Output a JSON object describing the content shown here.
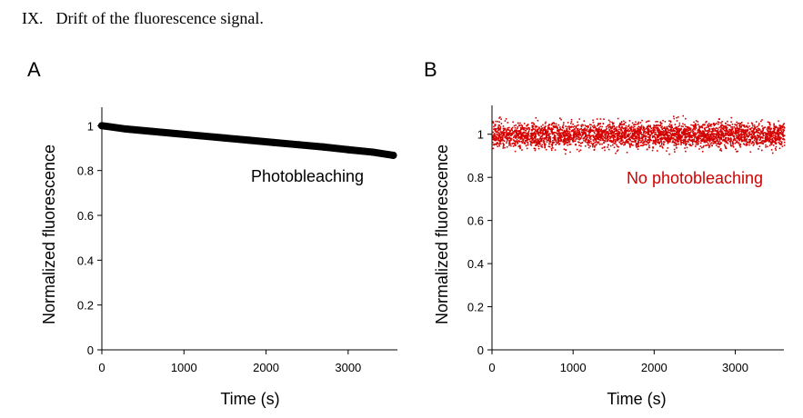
{
  "heading": {
    "number": "IX.",
    "title": "Drift of the fluorescence signal."
  },
  "chart_data": [
    {
      "type": "scatter",
      "panel_label": "A",
      "xlabel": "Time (s)",
      "ylabel": "Normalized fluorescence",
      "xlim": [
        0,
        3600
      ],
      "ylim": [
        0,
        1.05
      ],
      "xticks": [
        0,
        1000,
        2000,
        3000
      ],
      "yticks": [
        0,
        0.2,
        0.4,
        0.6,
        0.8,
        1
      ],
      "ytick_labels": [
        "0",
        "0.2",
        "0.4",
        "0.6",
        "0.8",
        "1"
      ],
      "grid": false,
      "annotation": "Photobleaching",
      "color": "#000000",
      "series": [
        {
          "x": [
            0,
            300,
            600,
            900,
            1200,
            1500,
            1800,
            2100,
            2400,
            2700,
            3000,
            3300,
            3550
          ],
          "y": [
            1.0,
            0.985,
            0.975,
            0.965,
            0.955,
            0.945,
            0.935,
            0.925,
            0.915,
            0.905,
            0.893,
            0.882,
            0.868
          ]
        }
      ]
    },
    {
      "type": "scatter",
      "panel_label": "B",
      "xlabel": "Time (s)",
      "ylabel": "Normalized fluorescence",
      "xlim": [
        0,
        3600
      ],
      "ylim": [
        0,
        1.1
      ],
      "xticks": [
        0,
        1000,
        2000,
        3000
      ],
      "yticks": [
        0,
        0.2,
        0.4,
        0.6,
        0.8,
        1
      ],
      "ytick_labels": [
        "0",
        "0.2",
        "0.4",
        "0.6",
        "0.8",
        "1"
      ],
      "grid": false,
      "annotation": "No photobleaching",
      "color": "#d40000",
      "series": [
        {
          "x_range": [
            0,
            3600
          ],
          "mean": 1.0,
          "spread": [
            0.9,
            1.1
          ]
        }
      ]
    }
  ]
}
